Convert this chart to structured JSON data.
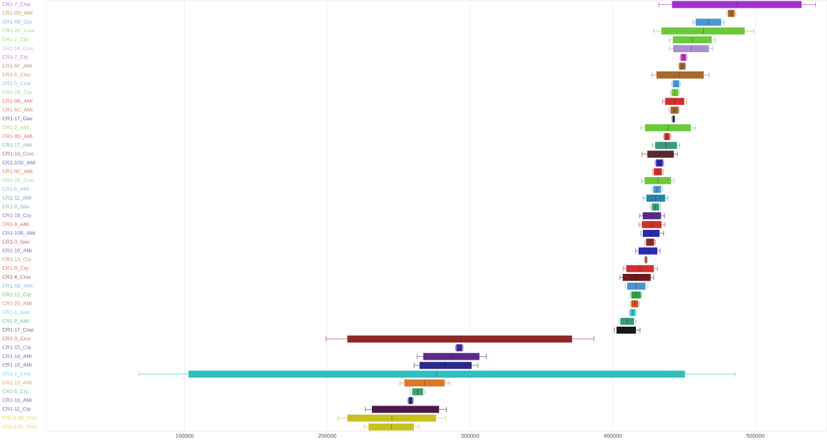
{
  "chart_data": {
    "type": "box",
    "orientation": "horizontal",
    "grid": "x",
    "categories": [
      "CR1-7_Croc",
      "CR1-6D_AMi",
      "CR1-5B_Crp",
      "CR1-2C_Croc",
      "CR1-2_Crp",
      "CR1-14_Croc",
      "CR1-7_Crp",
      "CR1-6F_AMi",
      "CR1-6_Croc",
      "CR1-5_Croc",
      "CR1-2B_Crp",
      "CR1-9B_AMi",
      "CR1-6C_AMi",
      "CR1-17_Gav",
      "CR1-2_AMi",
      "CR1-9D_AMi",
      "CR1-17_AMi",
      "CR1-16_Croc",
      "CR1-10D_AMi",
      "CR1-9C_AMi",
      "CR1-2B_Croc",
      "CR1-5_AMi",
      "CR1-11_AMi",
      "CR1-8_Gav",
      "CR1-18_Crp",
      "CR1-9_AMi",
      "CR1-10B_AMi",
      "CR1-3_Gav",
      "CR1-10_AMi",
      "CR1-13_Crp",
      "CR1-9_Crp",
      "CR1-4_Croc",
      "CR1-5B_AMi",
      "CR1-12_Crp",
      "CR1-20_AMi",
      "CR1-1_Gav",
      "CR1-8_AMi",
      "CR1-17_Croc",
      "CR1-3_Croc",
      "CR1-15_Crp",
      "CR1-14_AMi",
      "CR1-15_AMi",
      "CR1-1_Croc",
      "CR1-13_AMi",
      "CR1-8_Crp",
      "CR1-16_AMi",
      "CR1-11_Crp",
      "CR1-L3B_Croc",
      "CR1-L3A_Croc"
    ],
    "boxes": [
      {
        "low": 432200,
        "q1": 441500,
        "median": 487400,
        "q3": 532300,
        "high": 542100
      },
      {
        "low": 479900,
        "q1": 480700,
        "median": 482900,
        "q3": 485300,
        "high": 486100
      },
      {
        "low": 456200,
        "q1": 458100,
        "median": 467100,
        "q3": 475900,
        "high": 477900
      },
      {
        "low": 428700,
        "q1": 434100,
        "median": 463600,
        "q3": 492500,
        "high": 498900
      },
      {
        "low": 439600,
        "q1": 442100,
        "median": 455700,
        "q3": 469300,
        "high": 472000
      },
      {
        "low": 439600,
        "q1": 442300,
        "median": 455100,
        "q3": 467400,
        "high": 470100
      },
      {
        "low": 447200,
        "q1": 447700,
        "median": 449500,
        "q3": 451400,
        "high": 451900
      },
      {
        "low": 446100,
        "q1": 446600,
        "median": 448700,
        "q3": 450800,
        "high": 451200
      },
      {
        "low": 427400,
        "q1": 430600,
        "median": 446900,
        "q3": 463700,
        "high": 467400
      },
      {
        "low": 441500,
        "q1": 442100,
        "median": 444500,
        "q3": 446600,
        "high": 447200
      },
      {
        "low": 440500,
        "q1": 441200,
        "median": 443400,
        "q3": 446000,
        "high": 446600
      },
      {
        "low": 434800,
        "q1": 436700,
        "median": 443400,
        "q3": 450100,
        "high": 451700
      },
      {
        "low": 439400,
        "q1": 440500,
        "median": 443100,
        "q3": 446000,
        "high": 446600
      },
      {
        "low": 441500,
        "q1": 442000,
        "median": 442600,
        "q3": 443200,
        "high": 443500
      },
      {
        "low": 419600,
        "q1": 422600,
        "median": 438800,
        "q3": 454600,
        "high": 458000
      },
      {
        "low": 435600,
        "q1": 436100,
        "median": 437900,
        "q3": 439900,
        "high": 440500
      },
      {
        "low": 427700,
        "q1": 429700,
        "median": 437200,
        "q3": 445000,
        "high": 446900
      },
      {
        "low": 420500,
        "q1": 424200,
        "median": 433300,
        "q3": 442800,
        "high": 445300
      },
      {
        "low": 429700,
        "q1": 430300,
        "median": 432700,
        "q3": 435100,
        "high": 435700
      },
      {
        "low": 427900,
        "q1": 428700,
        "median": 431600,
        "q3": 434400,
        "high": 435400
      },
      {
        "low": 420200,
        "q1": 422300,
        "median": 431600,
        "q3": 440800,
        "high": 442900
      },
      {
        "low": 427400,
        "q1": 428400,
        "median": 430900,
        "q3": 433800,
        "high": 434800
      },
      {
        "low": 421500,
        "q1": 423600,
        "median": 430100,
        "q3": 436700,
        "high": 438600
      },
      {
        "low": 426300,
        "q1": 427400,
        "median": 429800,
        "q3": 432500,
        "high": 433500
      },
      {
        "low": 418900,
        "q1": 421000,
        "median": 427400,
        "q3": 433800,
        "high": 436200
      },
      {
        "low": 418300,
        "q1": 420400,
        "median": 427200,
        "q3": 434100,
        "high": 436700
      },
      {
        "low": 419600,
        "q1": 421000,
        "median": 426900,
        "q3": 432800,
        "high": 435700
      },
      {
        "low": 422600,
        "q1": 423400,
        "median": 426100,
        "q3": 429000,
        "high": 429800
      },
      {
        "low": 415900,
        "q1": 418100,
        "median": 424700,
        "q3": 431200,
        "high": 433200
      },
      {
        "low": 422300,
        "q1": 422600,
        "median": 423300,
        "q3": 423900,
        "high": 424200
      },
      {
        "low": 407400,
        "q1": 409500,
        "median": 419100,
        "q3": 428700,
        "high": 431400
      },
      {
        "low": 405000,
        "q1": 406900,
        "median": 416700,
        "q3": 426600,
        "high": 428700
      },
      {
        "low": 408700,
        "q1": 410100,
        "median": 416500,
        "q3": 422900,
        "high": 424500
      },
      {
        "low": 412200,
        "q1": 413000,
        "median": 416200,
        "q3": 419700,
        "high": 420200
      },
      {
        "low": 412400,
        "q1": 413000,
        "median": 415400,
        "q3": 417800,
        "high": 418600
      },
      {
        "low": 411700,
        "q1": 412100,
        "median": 414000,
        "q3": 415900,
        "high": 416500
      },
      {
        "low": 404200,
        "q1": 405300,
        "median": 410100,
        "q3": 414900,
        "high": 416200
      },
      {
        "low": 401000,
        "q1": 402600,
        "median": 409500,
        "q3": 416200,
        "high": 419100
      },
      {
        "low": 199000,
        "q1": 214000,
        "median": 293500,
        "q3": 371500,
        "high": 386800
      },
      {
        "low": 289800,
        "q1": 290300,
        "median": 292300,
        "q3": 294600,
        "high": 295100
      },
      {
        "low": 262900,
        "q1": 267200,
        "median": 286900,
        "q3": 306600,
        "high": 311400
      },
      {
        "low": 260800,
        "q1": 264600,
        "median": 282600,
        "q3": 301100,
        "high": 305400
      },
      {
        "low": 68100,
        "q1": 102700,
        "median": 276500,
        "q3": 450600,
        "high": 485600
      },
      {
        "low": 250900,
        "q1": 254000,
        "median": 268000,
        "q3": 282200,
        "high": 285500
      },
      {
        "low": 258100,
        "q1": 259500,
        "median": 263200,
        "q3": 267100,
        "high": 268500
      },
      {
        "low": 256400,
        "q1": 256900,
        "median": 258300,
        "q3": 259800,
        "high": 260300
      },
      {
        "low": 226600,
        "q1": 231200,
        "median": 254700,
        "q3": 278300,
        "high": 283400
      },
      {
        "low": 207500,
        "q1": 214000,
        "median": 245200,
        "q3": 276100,
        "high": 282900
      },
      {
        "low": 226000,
        "q1": 228900,
        "median": 244900,
        "q3": 260600,
        "high": 264200
      }
    ],
    "colors": [
      "#a030d0",
      "#a0642a",
      "#4a96d0",
      "#6cc83c",
      "#6cc83c",
      "#a890d0",
      "#c030c0",
      "#a0642a",
      "#a8692a",
      "#4a9ad0",
      "#6cc83c",
      "#d03030",
      "#a0642a",
      "#1a1a3a",
      "#6cc83c",
      "#d03030",
      "#3c9a7a",
      "#5a2a2a",
      "#2a2aa8",
      "#d03030",
      "#6cc83c",
      "#4a96d0",
      "#2a80a8",
      "#3c9a7a",
      "#5a2a8a",
      "#d03030",
      "#2a2aa8",
      "#902a2a",
      "#2a2ab0",
      "#a0642a",
      "#d03030",
      "#6a1a1a",
      "#4a96d0",
      "#30a050",
      "#d05020",
      "#30c0c0",
      "#3c9a7a",
      "#1a1a1a",
      "#902a2a",
      "#4a2a9a",
      "#5a2a8a",
      "#2a2a8a",
      "#30c0c0",
      "#d87a2a",
      "#3ca070",
      "#2a2a8a",
      "#4a1a4a",
      "#c8c020",
      "#c8c020"
    ],
    "xlim": [
      3000,
      550000
    ],
    "xticks": [
      100000,
      200000,
      300000,
      400000,
      500000
    ]
  }
}
